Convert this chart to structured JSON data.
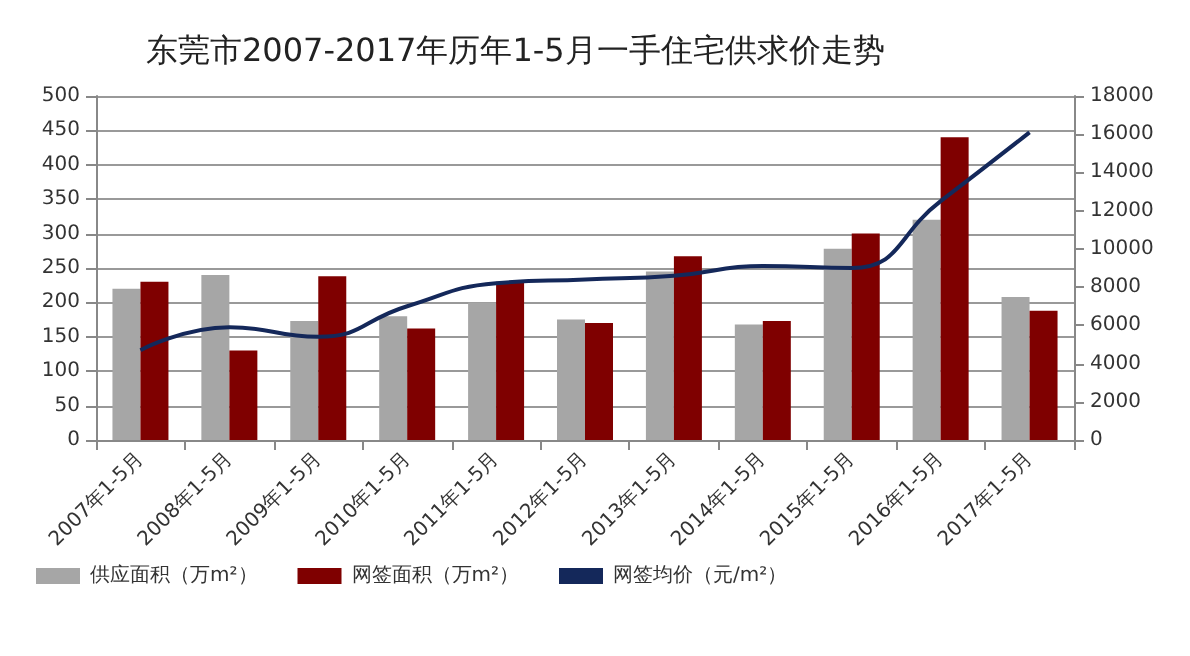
{
  "chart_data": {
    "type": "bar",
    "title": "东莞市2007-2017年历年1-5月一手住宅供求价走势",
    "categories": [
      "2007年1-5月",
      "2008年1-5月",
      "2009年1-5月",
      "2010年1-5月",
      "2011年1-5月",
      "2012年1-5月",
      "2013年1-5月",
      "2014年1-5月",
      "2015年1-5月",
      "2016年1-5月",
      "2017年1-5月"
    ],
    "series": [
      {
        "name": "供应面积（万m²）",
        "color": "#a6a6a6",
        "values": [
          220,
          240,
          173,
          180,
          200,
          175,
          245,
          168,
          278,
          320,
          208
        ]
      },
      {
        "name": "网签面积（万m²）",
        "color": "#7f0000",
        "values": [
          230,
          130,
          238,
          162,
          230,
          170,
          267,
          173,
          300,
          440,
          188
        ]
      },
      {
        "name": "网签均价（元/m²）",
        "type": "line",
        "axis": "y2",
        "color": "#14285a",
        "values": [
          4700,
          5900,
          5400,
          7000,
          8200,
          8400,
          8600,
          9100,
          9000,
          12500,
          16100
        ]
      }
    ],
    "ylim": [
      0,
      500
    ],
    "yticks": [
      0,
      50,
      100,
      150,
      200,
      250,
      300,
      350,
      400,
      450,
      500
    ],
    "y2lim": [
      0,
      18000
    ],
    "y2ticks": [
      0,
      2000,
      4000,
      6000,
      8000,
      10000,
      12000,
      14000,
      16000,
      18000
    ],
    "grid": "y",
    "legend": "bottom left",
    "marker": "none"
  }
}
